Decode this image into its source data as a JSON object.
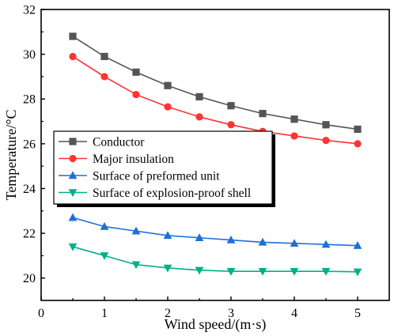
{
  "chart_data": {
    "type": "line",
    "title": "",
    "xlabel": "Wind speed/(m·s)",
    "ylabel": "Temperature/°C",
    "xlim": [
      0,
      5.5
    ],
    "ylim": [
      19,
      32
    ],
    "xticks": [
      0,
      1,
      2,
      3,
      4,
      5
    ],
    "yticks": [
      20,
      22,
      24,
      26,
      28,
      30,
      32
    ],
    "grid": false,
    "legend_position": "center-left",
    "x": [
      0.5,
      1.0,
      1.5,
      2.0,
      2.5,
      3.0,
      3.5,
      4.0,
      4.5,
      5.0
    ],
    "series": [
      {
        "name": "Conductor",
        "color": "#555555",
        "marker": "square",
        "values": [
          30.8,
          29.9,
          29.2,
          28.6,
          28.1,
          27.7,
          27.35,
          27.1,
          26.85,
          26.65
        ]
      },
      {
        "name": "Major insulation",
        "color": "#ff3333",
        "marker": "circle",
        "values": [
          29.9,
          29.0,
          28.2,
          27.65,
          27.2,
          26.85,
          26.55,
          26.35,
          26.15,
          26.0
        ]
      },
      {
        "name": "Surface of preformed unit",
        "color": "#1e6fd9",
        "marker": "triangle-up",
        "values": [
          22.7,
          22.3,
          22.1,
          21.9,
          21.8,
          21.7,
          21.6,
          21.55,
          21.5,
          21.45
        ]
      },
      {
        "name": "Surface of explosion-proof shell",
        "color": "#00b08a",
        "marker": "triangle-down",
        "values": [
          21.4,
          21.0,
          20.6,
          20.45,
          20.35,
          20.3,
          20.3,
          20.3,
          20.3,
          20.28
        ]
      }
    ]
  }
}
